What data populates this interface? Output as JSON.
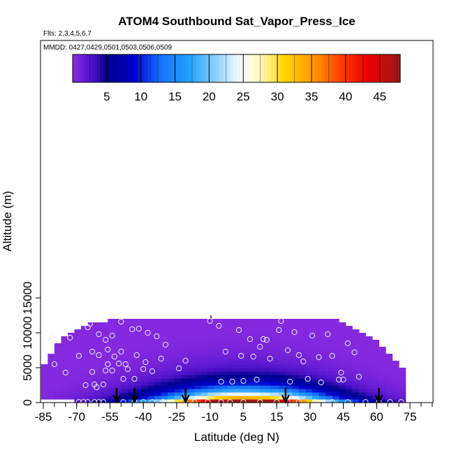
{
  "chart_data": {
    "type": "heatmap",
    "title": "ATOM4 Southbound Sat_Vapor_Press_Ice",
    "flights_note": "Flts: 2,3,4,5,6,7",
    "dates_note": "MMDD: 0427,0429,0501,0503,0506,0509",
    "xlabel": "Latitude (deg N)",
    "ylabel": "Altitude (m)",
    "xlim": [
      -87,
      88
    ],
    "ylim": [
      0,
      17500
    ],
    "x_ticks": [
      -85,
      -70,
      -55,
      -40,
      -25,
      -10,
      5,
      15,
      30,
      45,
      60,
      75
    ],
    "y_ticks": [
      0,
      5000,
      10000,
      15000
    ],
    "colorbar": {
      "range": [
        0,
        48
      ],
      "ticks": [
        5,
        10,
        15,
        20,
        25,
        30,
        35,
        40,
        45
      ],
      "stops": [
        {
          "v": 0,
          "c": "#8a2be2"
        },
        {
          "v": 3,
          "c": "#4b12c8"
        },
        {
          "v": 5,
          "c": "#00008b"
        },
        {
          "v": 9,
          "c": "#0000cd"
        },
        {
          "v": 13,
          "c": "#1874ff"
        },
        {
          "v": 17,
          "c": "#1ea0ff"
        },
        {
          "v": 21,
          "c": "#8fd0ff"
        },
        {
          "v": 24,
          "c": "#e8f6ff"
        },
        {
          "v": 26,
          "c": "#fffce8"
        },
        {
          "v": 28,
          "c": "#fff3a0"
        },
        {
          "v": 31,
          "c": "#ffd700"
        },
        {
          "v": 35,
          "c": "#ff9d00"
        },
        {
          "v": 39,
          "c": "#ff4500"
        },
        {
          "v": 43,
          "c": "#ee0000"
        },
        {
          "v": 48,
          "c": "#a01818"
        }
      ]
    },
    "profile_arrows_lat": [
      -52,
      -44,
      -21,
      19,
      61
    ],
    "observation_points": [
      [
        -81,
        9500
      ],
      [
        -80,
        5500
      ],
      [
        -75,
        4300
      ],
      [
        -73,
        9300
      ],
      [
        -69,
        6700
      ],
      [
        -66,
        2500
      ],
      [
        -65,
        10800
      ],
      [
        -64,
        11300
      ],
      [
        -63,
        7300
      ],
      [
        -63,
        4400
      ],
      [
        -62,
        2600
      ],
      [
        -61,
        2200
      ],
      [
        -60,
        9800
      ],
      [
        -60,
        6800
      ],
      [
        -58,
        2600
      ],
      [
        -57,
        4600
      ],
      [
        -57,
        9000
      ],
      [
        -56,
        7600
      ],
      [
        -56,
        5500
      ],
      [
        -54,
        9600
      ],
      [
        -54,
        4600
      ],
      [
        -53,
        6600
      ],
      [
        -51,
        5600
      ],
      [
        -50,
        11600
      ],
      [
        -50,
        7300
      ],
      [
        -49,
        3400
      ],
      [
        -48,
        5500
      ],
      [
        -47,
        4800
      ],
      [
        -45,
        10500
      ],
      [
        -44,
        3400
      ],
      [
        -43,
        6800
      ],
      [
        -42,
        10600
      ],
      [
        -40,
        4800
      ],
      [
        -39,
        5800
      ],
      [
        -38,
        10000
      ],
      [
        -36,
        4500
      ],
      [
        -34,
        9500
      ],
      [
        -32,
        6300
      ],
      [
        -30,
        8300
      ],
      [
        -24,
        4900
      ],
      [
        -21,
        6000
      ],
      [
        -10,
        11700
      ],
      [
        -6,
        11000
      ],
      [
        -5,
        3000
      ],
      [
        -3,
        7300
      ],
      [
        0,
        3000
      ],
      [
        3,
        10400
      ],
      [
        4,
        6700
      ],
      [
        5,
        3100
      ],
      [
        7,
        9100
      ],
      [
        8,
        6600
      ],
      [
        9,
        3300
      ],
      [
        10,
        8000
      ],
      [
        11,
        9100
      ],
      [
        12,
        9000
      ],
      [
        13,
        6300
      ],
      [
        16,
        10400
      ],
      [
        17,
        11700
      ],
      [
        20,
        7500
      ],
      [
        21,
        3000
      ],
      [
        23,
        10100
      ],
      [
        25,
        6800
      ],
      [
        27,
        5900
      ],
      [
        29,
        3400
      ],
      [
        31,
        9600
      ],
      [
        34,
        6500
      ],
      [
        35,
        2900
      ],
      [
        38,
        9800
      ],
      [
        40,
        6700
      ],
      [
        43,
        3300
      ],
      [
        44,
        4300
      ],
      [
        45,
        3300
      ],
      [
        47,
        8500
      ],
      [
        50,
        7200
      ],
      [
        52,
        3700
      ]
    ],
    "surface_points_lat": [
      -69,
      -67,
      -65,
      -62,
      -60,
      -58,
      -49,
      -44,
      -40,
      -36,
      -31,
      -27,
      -22,
      -17,
      -11,
      -5,
      -1,
      5,
      10,
      15,
      20,
      25,
      32,
      40,
      47,
      55,
      61,
      66,
      71
    ],
    "field": {
      "lat_edges": [
        -86,
        -83,
        -80,
        -77,
        -74,
        -71,
        -68,
        -65,
        -62,
        -59,
        -56,
        -53,
        -50,
        -47,
        -44,
        -41,
        -38,
        -35,
        -32,
        -29,
        -26,
        -23,
        -20,
        -17,
        -14,
        -11,
        -8,
        -5,
        -2,
        1,
        4,
        7,
        10,
        13,
        16,
        19,
        22,
        25,
        28,
        31,
        34,
        37,
        40,
        43,
        46,
        49,
        52,
        55,
        58,
        61,
        64,
        67,
        70,
        73
      ],
      "alt_edges": [
        0,
        500,
        1000,
        1500,
        2000,
        2500,
        3000,
        3500,
        4000,
        4500,
        5000,
        5500,
        6000,
        6500,
        7000,
        7500,
        8000,
        8500,
        9000,
        9500,
        10000,
        10500,
        11000,
        11500,
        12000
      ],
      "top_alt_per_column": [
        5500,
        7000,
        8500,
        9500,
        10000,
        10500,
        11000,
        11500,
        11500,
        11500,
        12000,
        12000,
        12000,
        12000,
        12000,
        12000,
        12000,
        12000,
        12000,
        12000,
        12000,
        12000,
        12000,
        12000,
        12000,
        12000,
        12000,
        12000,
        12000,
        12000,
        12000,
        12000,
        12000,
        12000,
        12000,
        12000,
        12000,
        12000,
        12000,
        12000,
        12000,
        12000,
        12000,
        11500,
        11000,
        10500,
        10000,
        9500,
        9000,
        8000,
        7000,
        6000,
        5000
      ],
      "surface_coverage_lat": [
        -72,
        73
      ],
      "peak_value": 47,
      "peak_lat": 2,
      "upper_value": 0.3
    }
  }
}
